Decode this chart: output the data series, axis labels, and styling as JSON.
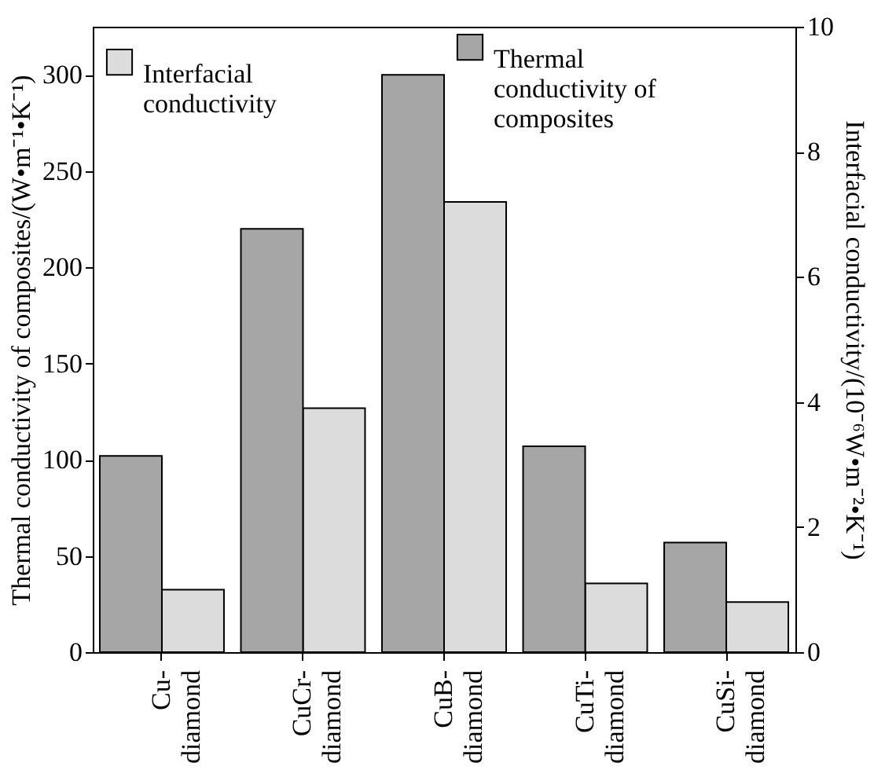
{
  "chart_data": {
    "type": "bar",
    "categories": [
      "Cu-diamond",
      "CuCr-diamond",
      "CuB-diamond",
      "CuTi-diamond",
      "CuSi-diamond"
    ],
    "series": [
      {
        "name": "Interfacial conductivity",
        "color": "#dcdcdc",
        "axis": "y2",
        "values": [
          1.0,
          3.9,
          7.2,
          1.1,
          0.8
        ]
      },
      {
        "name": "Thermal conductivity of composites",
        "color": "#a6a6a6",
        "values": [
          102,
          220,
          300,
          107,
          57
        ]
      }
    ],
    "ylabel": "Thermal conductivity of composites/(W•m⁻¹•K⁻¹)",
    "y2label": "Interfacial conductivity/(10⁻⁶W•m⁻²•K⁻¹)",
    "ylim": [
      0,
      325
    ],
    "yticks": [
      0,
      50,
      100,
      150,
      200,
      250,
      300
    ],
    "y2lim": [
      0,
      10
    ],
    "y2ticks": [
      0,
      2,
      4,
      6,
      8,
      10
    ],
    "legend": "top"
  }
}
